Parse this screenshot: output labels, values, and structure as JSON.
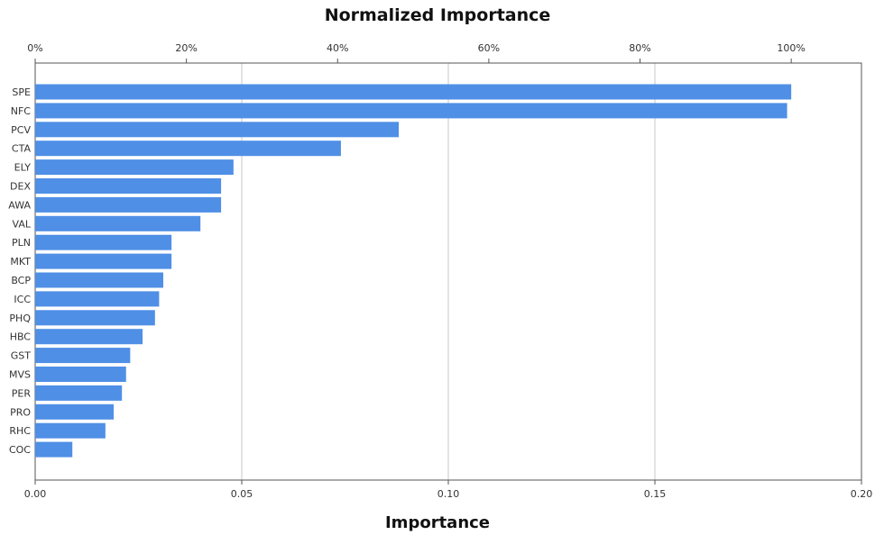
{
  "chart_data": {
    "type": "bar",
    "orientation": "horizontal",
    "title": "Normalized Importance",
    "xlabel": "Importance",
    "categories": [
      "SPE",
      "NFC",
      "PCV",
      "CTA",
      "ELY",
      "DEX",
      "AWA",
      "VAL",
      "PLN",
      "MKT",
      "BCP",
      "ICC",
      "PHQ",
      "HBC",
      "GST",
      "MVS",
      "PER",
      "PRO",
      "RHC",
      "COC"
    ],
    "values": [
      0.183,
      0.182,
      0.088,
      0.074,
      0.048,
      0.045,
      0.045,
      0.04,
      0.033,
      0.033,
      0.031,
      0.03,
      0.029,
      0.026,
      0.023,
      0.022,
      0.021,
      0.019,
      0.017,
      0.009
    ],
    "xlim": [
      0,
      0.2
    ],
    "bottom_axis": {
      "ticks": [
        0,
        0.05,
        0.1,
        0.15,
        0.2
      ],
      "tick_labels": [
        "0.00",
        "0.05",
        "0.10",
        "0.15",
        "0.20"
      ]
    },
    "top_axis": {
      "label": "Normalized Importance",
      "ticks": [
        0,
        0.0366,
        0.0732,
        0.1098,
        0.1464,
        0.183
      ],
      "tick_labels": [
        "0%",
        "20%",
        "40%",
        "60%",
        "80%",
        "100%"
      ]
    },
    "grid": "vertical lines at bottom-axis ticks",
    "bar_color": "#4f8fe6",
    "grid_color": "#c7c7c7",
    "axis_color": "#555555"
  }
}
